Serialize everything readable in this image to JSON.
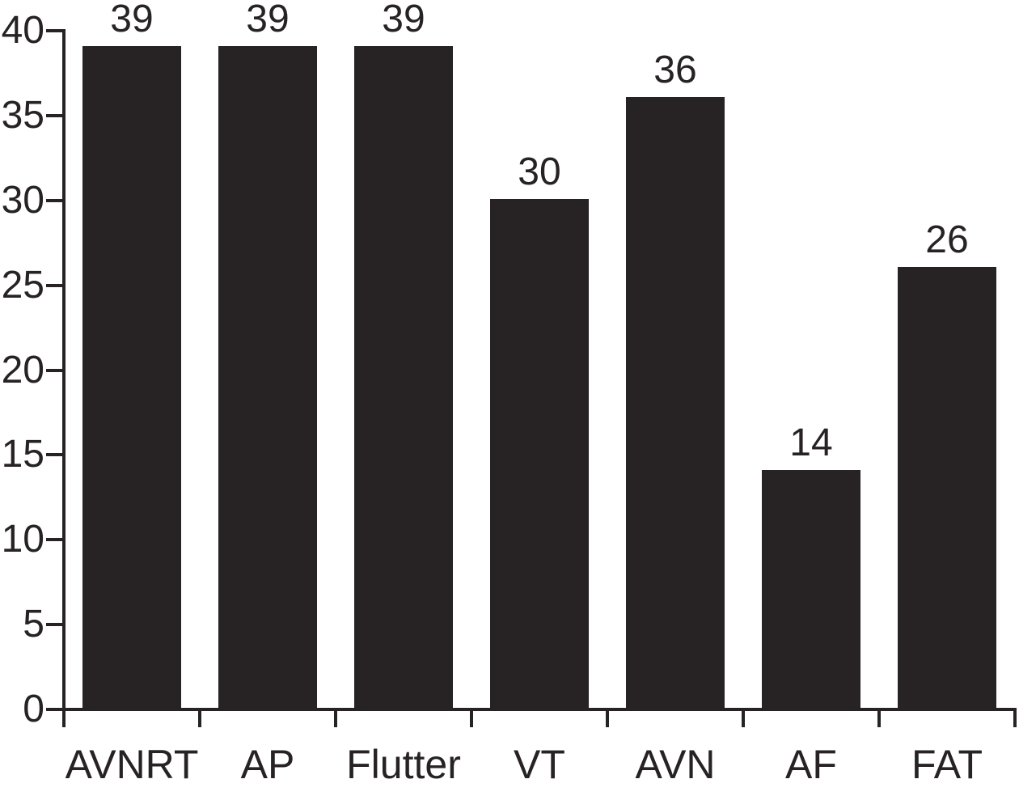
{
  "chart_data": {
    "type": "bar",
    "categories": [
      "AVNRT",
      "AP",
      "Flutter",
      "VT",
      "AVN",
      "AF",
      "FAT"
    ],
    "values": [
      39,
      39,
      39,
      30,
      36,
      14,
      26
    ],
    "bar_value_labels": [
      "39",
      "39",
      "39",
      "30",
      "36",
      "14",
      "26"
    ],
    "title": "",
    "xlabel": "",
    "ylabel": "",
    "ylim": [
      0,
      40
    ],
    "ytick_values": [
      0,
      5,
      10,
      15,
      20,
      25,
      30,
      35,
      40
    ],
    "ytick_labels": [
      "0",
      "5",
      "10",
      "15",
      "20",
      "25",
      "30",
      "35",
      "40"
    ],
    "grid": false,
    "legend": "none",
    "colors": {
      "bar": "#272324",
      "text": "#272324",
      "axis": "#272324",
      "background": "#ffffff"
    }
  }
}
